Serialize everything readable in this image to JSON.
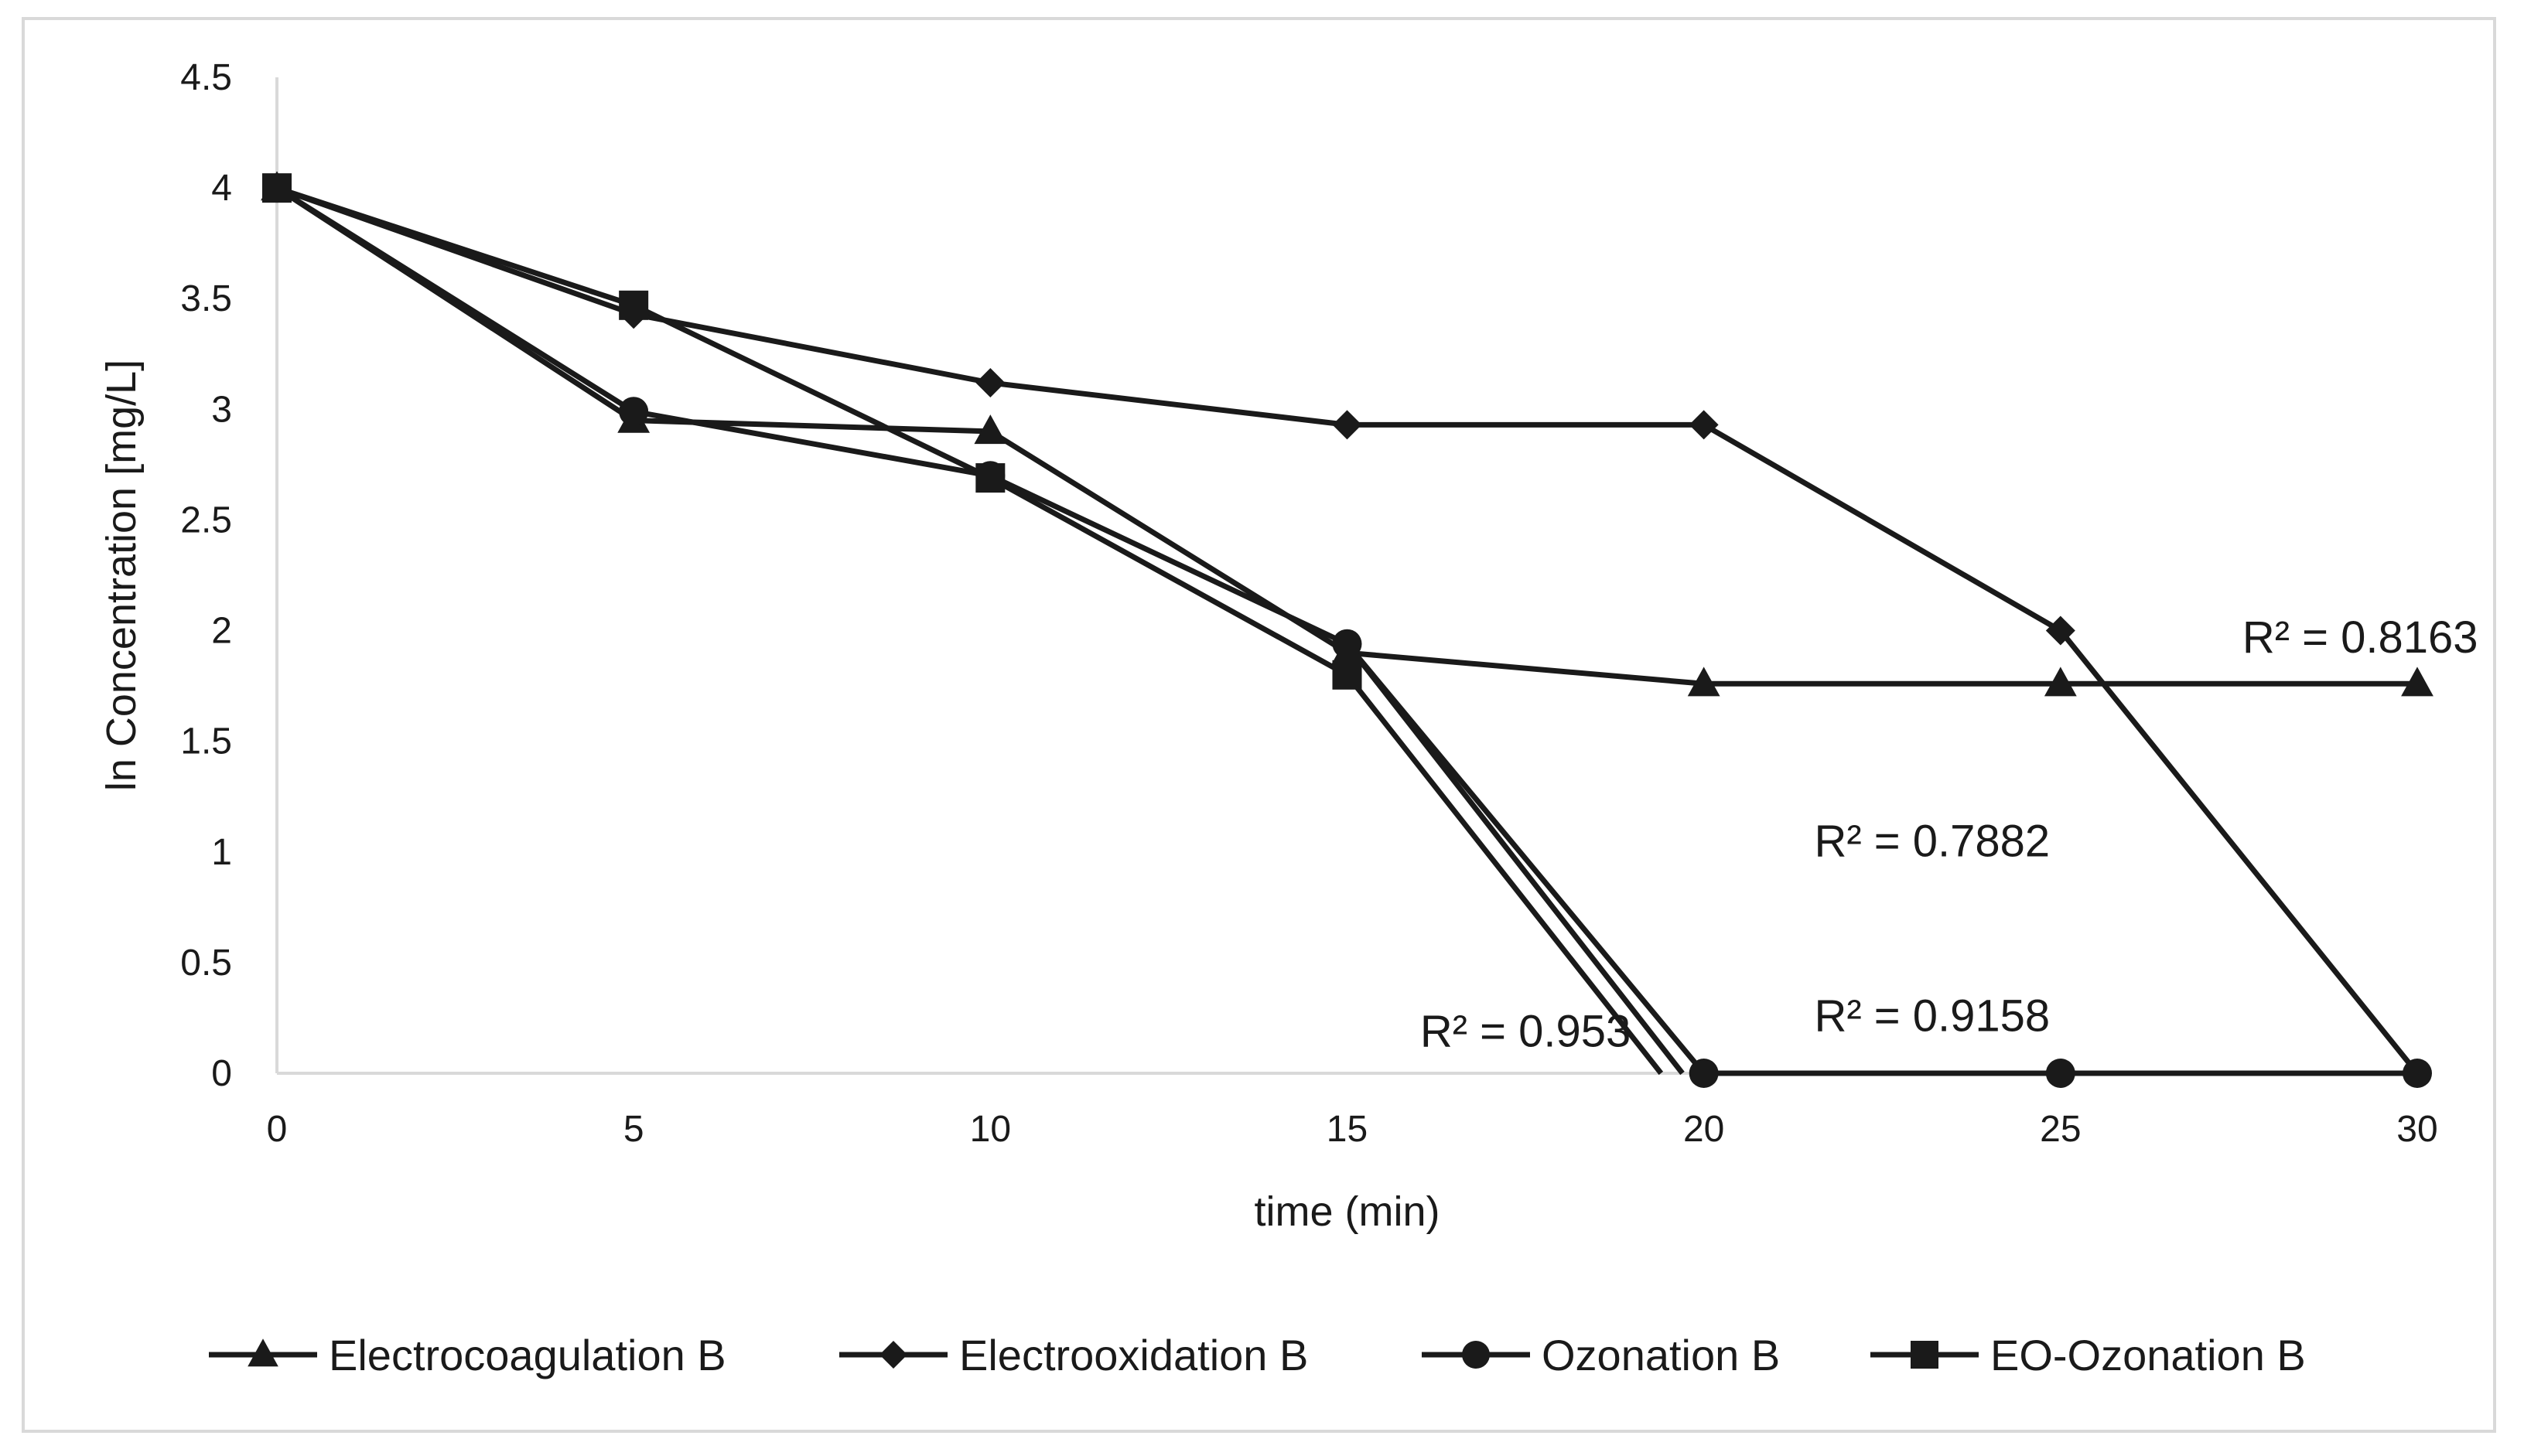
{
  "chart_data": {
    "type": "line",
    "title": "",
    "xlabel": "time (min)",
    "ylabel": "ln Concentration [mg/L]",
    "xlim": [
      0,
      30
    ],
    "ylim": [
      0,
      4.5
    ],
    "x_ticks": [
      0,
      5,
      10,
      15,
      20,
      25,
      30
    ],
    "y_ticks": [
      0,
      0.5,
      1,
      1.5,
      2,
      2.5,
      3,
      3.5,
      4,
      4.5
    ],
    "y_tick_labels": [
      "0",
      "0.5",
      "1",
      "1.5",
      "2",
      "2.5",
      "3",
      "3.5",
      "4",
      "4.5"
    ],
    "x_tick_labels": [
      "0",
      "5",
      "10",
      "15",
      "20",
      "25",
      "30"
    ],
    "grid": false,
    "legend_position": "bottom",
    "series": [
      {
        "name": "Electrocoagulation B",
        "marker": "triangle",
        "x": [
          0,
          5,
          10,
          15,
          20,
          25,
          30
        ],
        "values": [
          4.0,
          2.95,
          2.9,
          1.9,
          1.76,
          1.76,
          1.76
        ]
      },
      {
        "name": "Electrooxidation B",
        "marker": "diamond",
        "x": [
          0,
          5,
          10,
          15,
          20,
          25,
          30
        ],
        "values": [
          4.0,
          3.43,
          3.12,
          2.93,
          2.93,
          2.0,
          0.0
        ]
      },
      {
        "name": "Ozonation B",
        "marker": "circle",
        "x": [
          0,
          5,
          10,
          15,
          20,
          25,
          30
        ],
        "values": [
          4.0,
          2.99,
          2.7,
          1.94,
          0.0,
          0.0,
          0.0
        ]
      },
      {
        "name": "EO-Ozonation B",
        "marker": "square",
        "x": [
          0,
          5,
          10,
          15
        ],
        "values": [
          4.0,
          3.47,
          2.69,
          1.8
        ]
      }
    ],
    "trendline_segments": [
      {
        "series": "Ozonation B",
        "x": [
          15,
          19.7
        ],
        "values": [
          1.94,
          0.0
        ]
      },
      {
        "series": "EO-Ozonation B",
        "x": [
          15,
          19.4
        ],
        "values": [
          1.8,
          0.0
        ]
      }
    ],
    "annotations": [
      {
        "text": "R² = 0.8163",
        "x": 29.2,
        "y": 1.9
      },
      {
        "text": "R² = 0.7882",
        "x": 23.2,
        "y": 0.98
      },
      {
        "text": "R² = 0.953",
        "x": 17.5,
        "y": 0.12
      },
      {
        "text": "R² = 0.9158",
        "x": 23.2,
        "y": 0.19
      }
    ],
    "colors": {
      "line": "#1a1a1a",
      "axis": "#d9d9d9",
      "frame": "#d9d9d9"
    }
  }
}
